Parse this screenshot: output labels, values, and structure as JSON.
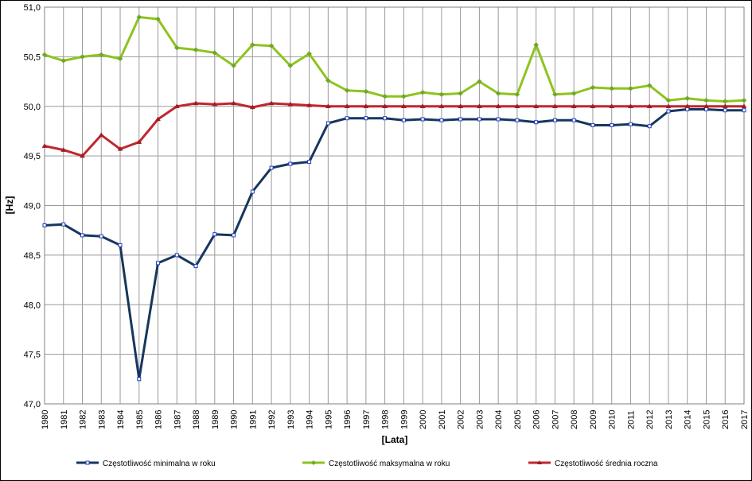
{
  "chart_data": {
    "type": "line",
    "xlabel": "[Lata]",
    "ylabel": "[Hz]",
    "ylim": [
      47.0,
      51.0
    ],
    "yticks": [
      "47,0",
      "47,5",
      "48,0",
      "48,5",
      "49,0",
      "49,5",
      "50,0",
      "50,5",
      "51,0"
    ],
    "ytick_values": [
      47.0,
      47.5,
      48.0,
      48.5,
      49.0,
      49.5,
      50.0,
      50.5,
      51.0
    ],
    "categories": [
      "1980",
      "1981",
      "1982",
      "1983",
      "1984",
      "1985",
      "1986",
      "1987",
      "1988",
      "1989",
      "1990",
      "1991",
      "1992",
      "1993",
      "1994",
      "1995",
      "1996",
      "1997",
      "1998",
      "1999",
      "2000",
      "2001",
      "2002",
      "2003",
      "2004",
      "2005",
      "2006",
      "2007",
      "2008",
      "2009",
      "2010",
      "2011",
      "2012",
      "2013",
      "2014",
      "2015",
      "2016",
      "2017"
    ],
    "grid": true,
    "legend_position": "bottom",
    "series": [
      {
        "name": "Częstotliwość minimalna w roku",
        "color": "#17365d",
        "marker": "square",
        "values": [
          48.8,
          48.81,
          48.7,
          48.69,
          48.6,
          47.25,
          48.42,
          48.5,
          48.39,
          48.71,
          48.7,
          49.14,
          49.38,
          49.42,
          49.44,
          49.83,
          49.88,
          49.88,
          49.88,
          49.86,
          49.87,
          49.86,
          49.87,
          49.87,
          49.87,
          49.86,
          49.84,
          49.86,
          49.86,
          49.81,
          49.81,
          49.82,
          49.8,
          49.95,
          49.97,
          49.97,
          49.96,
          49.96
        ]
      },
      {
        "name": "Częstotliwość maksymalna w roku",
        "color": "#8fc31f",
        "marker": "diamond",
        "values": [
          50.52,
          50.46,
          50.5,
          50.52,
          50.48,
          50.9,
          50.88,
          50.59,
          50.57,
          50.54,
          50.41,
          50.62,
          50.61,
          50.41,
          50.53,
          50.26,
          50.16,
          50.15,
          50.1,
          50.1,
          50.14,
          50.12,
          50.13,
          50.25,
          50.13,
          50.12,
          50.62,
          50.12,
          50.13,
          50.19,
          50.18,
          50.18,
          50.21,
          50.06,
          50.08,
          50.06,
          50.05,
          50.06
        ]
      },
      {
        "name": "Częstotliwość średnia roczna",
        "color": "#c0272d",
        "marker": "triangle",
        "values": [
          49.6,
          49.56,
          49.5,
          49.71,
          49.57,
          49.64,
          49.87,
          50.0,
          50.03,
          50.02,
          50.03,
          49.99,
          50.03,
          50.02,
          50.01,
          50.0,
          50.0,
          50.0,
          50.0,
          50.0,
          50.0,
          50.0,
          50.0,
          50.0,
          50.0,
          50.0,
          50.0,
          50.0,
          50.0,
          50.0,
          50.0,
          50.0,
          50.0,
          50.0,
          50.0,
          50.0,
          50.0,
          50.0
        ]
      }
    ]
  }
}
